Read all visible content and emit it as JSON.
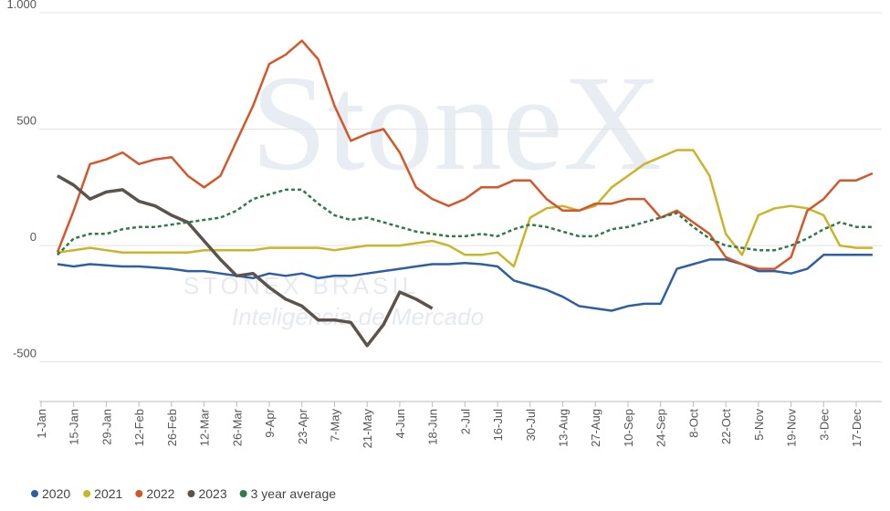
{
  "chart_data": {
    "type": "line",
    "watermark": [
      "StoneX",
      "STONEX BRASIL",
      "Inteligência de Mercado"
    ],
    "categories": [
      "1-Jan",
      null,
      "15-Jan",
      null,
      "29-Jan",
      null,
      "12-Feb",
      null,
      "26-Feb",
      null,
      "12-Mar",
      null,
      "26-Mar",
      null,
      "9-Apr",
      null,
      "23-Apr",
      null,
      "7-May",
      null,
      "21-May",
      null,
      "4-Jun",
      null,
      "18-Jun",
      null,
      "2-Jul",
      null,
      "16-Jul",
      null,
      "30-Jul",
      null,
      "13-Aug",
      null,
      "27-Aug",
      null,
      "10-Sep",
      null,
      "24-Sep",
      null,
      "8-Oct",
      null,
      "22-Oct",
      null,
      "5-Nov",
      null,
      "19-Nov",
      null,
      "3-Dec",
      null,
      "17-Dec",
      null
    ],
    "series": [
      {
        "name": "2020",
        "color": "#2e5fa3",
        "dashed": false,
        "values": [
          null,
          -80,
          -90,
          -80,
          -85,
          -90,
          -90,
          -95,
          -100,
          -110,
          -110,
          -120,
          -130,
          -140,
          -120,
          -130,
          -120,
          -140,
          -130,
          -130,
          -120,
          -110,
          -100,
          -90,
          -80,
          -80,
          -75,
          -80,
          -90,
          -150,
          -170,
          -190,
          -220,
          -260,
          -270,
          -280,
          -260,
          -250,
          -250,
          -100,
          -80,
          -60,
          -60,
          -80,
          -110,
          -110,
          -120,
          -100,
          -40,
          -40,
          -40,
          -40
        ]
      },
      {
        "name": "2021",
        "color": "#c9b52a",
        "dashed": false,
        "values": [
          null,
          -30,
          -20,
          -10,
          -20,
          -30,
          -30,
          -30,
          -30,
          -30,
          -20,
          -20,
          -20,
          -20,
          -10,
          -10,
          -10,
          -10,
          -20,
          -10,
          0,
          0,
          0,
          10,
          20,
          0,
          -40,
          -40,
          -30,
          -90,
          120,
          160,
          170,
          150,
          170,
          250,
          300,
          350,
          380,
          410,
          410,
          300,
          50,
          -40,
          130,
          160,
          170,
          160,
          130,
          0,
          -10,
          -10
        ]
      },
      {
        "name": "2022",
        "color": "#d4572a",
        "dashed": false,
        "values": [
          null,
          -30,
          150,
          350,
          370,
          400,
          350,
          370,
          380,
          300,
          250,
          300,
          450,
          600,
          780,
          820,
          880,
          800,
          600,
          450,
          480,
          500,
          400,
          250,
          200,
          170,
          200,
          250,
          250,
          280,
          280,
          200,
          150,
          150,
          180,
          180,
          200,
          200,
          120,
          150,
          100,
          50,
          -50,
          -80,
          -100,
          -100,
          -50,
          150,
          200,
          280,
          280,
          310
        ]
      },
      {
        "name": "2023",
        "color": "#5b534c",
        "dashed": false,
        "values": [
          null,
          300,
          260,
          200,
          230,
          240,
          190,
          170,
          130,
          100,
          20,
          -60,
          -130,
          -120,
          -180,
          -230,
          -260,
          -320,
          -320,
          -330,
          -430,
          -340,
          -200,
          -230,
          -270,
          null,
          null,
          null,
          null,
          null,
          null,
          null,
          null,
          null,
          null,
          null,
          null,
          null,
          null,
          null,
          null,
          null,
          null,
          null,
          null,
          null,
          null,
          null,
          null,
          null,
          null,
          null
        ]
      },
      {
        "name": "3 year average",
        "color": "#2f7a4a",
        "dashed": true,
        "values": [
          null,
          -40,
          30,
          50,
          50,
          70,
          80,
          80,
          90,
          100,
          110,
          120,
          150,
          200,
          220,
          240,
          240,
          180,
          130,
          110,
          120,
          100,
          80,
          60,
          50,
          40,
          40,
          50,
          40,
          70,
          90,
          80,
          60,
          40,
          40,
          70,
          80,
          100,
          120,
          140,
          80,
          30,
          0,
          -10,
          -20,
          -20,
          0,
          30,
          70,
          100,
          80,
          80
        ]
      }
    ],
    "ylim": [
      -670,
      1000
    ],
    "yticks": [
      {
        "value": 1000,
        "label": "1.000"
      },
      500,
      0,
      -500
    ],
    "grid": true,
    "legend": "bottom"
  }
}
